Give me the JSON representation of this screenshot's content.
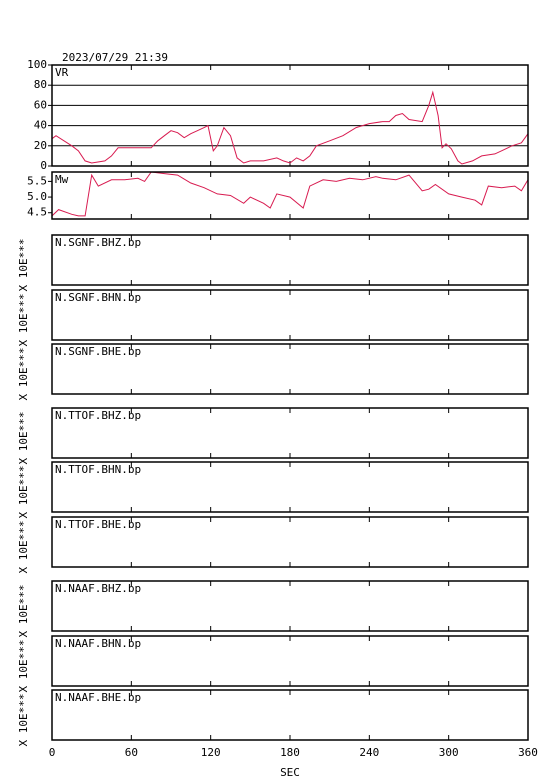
{
  "chart_data": [
    {
      "type": "line",
      "title": "2023/07/29 21:39",
      "label": "VR",
      "color": "#d81b50",
      "xlim": [
        0,
        360
      ],
      "x": [
        0,
        3,
        15,
        20,
        25,
        30,
        40,
        45,
        50,
        60,
        70,
        75,
        80,
        85,
        90,
        95,
        100,
        105,
        110,
        115,
        118,
        122,
        125,
        130,
        135,
        140,
        145,
        150,
        160,
        170,
        175,
        180,
        185,
        190,
        195,
        200,
        210,
        220,
        230,
        240,
        250,
        255,
        260,
        265,
        270,
        280,
        285,
        288,
        292,
        295,
        298,
        302,
        307,
        310,
        318,
        325,
        335,
        340,
        348,
        355,
        360
      ],
      "values": [
        27,
        30,
        20,
        15,
        5,
        3,
        5,
        10,
        18,
        18,
        18,
        18,
        25,
        30,
        35,
        33,
        28,
        32,
        35,
        38,
        40,
        15,
        20,
        38,
        30,
        8,
        3,
        5,
        5,
        8,
        5,
        3,
        8,
        5,
        10,
        20,
        25,
        30,
        38,
        42,
        44,
        44,
        50,
        52,
        46,
        44,
        60,
        73,
        50,
        18,
        22,
        17,
        5,
        2,
        5,
        10,
        12,
        15,
        20,
        23,
        32
      ],
      "ylim": [
        0,
        100
      ],
      "yticks": [
        0,
        20,
        40,
        60,
        80,
        100
      ],
      "grid": true
    },
    {
      "type": "line",
      "label": "Mw",
      "color": "#d81b50",
      "xlim": [
        0,
        360
      ],
      "x": [
        0,
        5,
        15,
        20,
        25,
        30,
        35,
        45,
        55,
        65,
        70,
        75,
        85,
        95,
        105,
        115,
        125,
        135,
        145,
        150,
        160,
        165,
        170,
        180,
        190,
        195,
        205,
        215,
        225,
        235,
        245,
        250,
        260,
        270,
        280,
        285,
        290,
        300,
        310,
        320,
        325,
        330,
        340,
        350,
        355,
        360
      ],
      "values": [
        4.4,
        4.6,
        4.45,
        4.4,
        4.4,
        5.7,
        5.35,
        5.55,
        5.55,
        5.6,
        5.5,
        5.8,
        5.75,
        5.7,
        5.45,
        5.3,
        5.1,
        5.05,
        4.8,
        5.0,
        4.8,
        4.65,
        5.1,
        5.0,
        4.65,
        5.35,
        5.55,
        5.5,
        5.6,
        5.55,
        5.65,
        5.6,
        5.55,
        5.7,
        5.2,
        5.25,
        5.4,
        5.1,
        5.0,
        4.9,
        4.75,
        5.35,
        5.3,
        5.35,
        5.2,
        5.55
      ],
      "ylim": [
        4.3,
        5.8
      ],
      "yticks": [
        4.5,
        {
          "value": 5,
          "label": "5.0"
        },
        5.5
      ],
      "grid": false
    },
    {
      "type": "empty",
      "label": "N.SGNF.BHZ.bp",
      "ylabel": "X 10E***",
      "xlim": [
        0,
        360
      ]
    },
    {
      "type": "empty",
      "label": "N.SGNF.BHN.bp",
      "ylabel": "X 10E***",
      "xlim": [
        0,
        360
      ]
    },
    {
      "type": "empty",
      "label": "N.SGNF.BHE.bp",
      "ylabel": "X 10E***",
      "xlim": [
        0,
        360
      ]
    },
    {
      "type": "empty",
      "label": "N.TTOF.BHZ.bp",
      "ylabel": "X 10E***",
      "xlim": [
        0,
        360
      ]
    },
    {
      "type": "empty",
      "label": "N.TTOF.BHN.bp",
      "ylabel": "X 10E***",
      "xlim": [
        0,
        360
      ]
    },
    {
      "type": "empty",
      "label": "N.TTOF.BHE.bp",
      "ylabel": "X 10E***",
      "xlim": [
        0,
        360
      ]
    },
    {
      "type": "empty",
      "label": "N.NAAF.BHZ.bp",
      "ylabel": "X 10E***",
      "xlim": [
        0,
        360
      ]
    },
    {
      "type": "empty",
      "label": "N.NAAF.BHN.bp",
      "ylabel": "X 10E***",
      "xlim": [
        0,
        360
      ]
    },
    {
      "type": "empty",
      "label": "N.NAAF.BHE.bp",
      "ylabel": "X 10E***",
      "xlim": [
        0,
        360
      ],
      "xticks": [
        0,
        60,
        120,
        180,
        240,
        300,
        360
      ],
      "xlabel": "SEC"
    }
  ]
}
